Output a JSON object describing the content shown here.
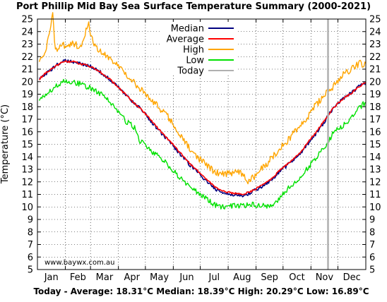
{
  "chart_data": {
    "type": "line",
    "title": "Port Phillip Mid Bay Sea Surface Temperature Summary (2000-2021)",
    "ylabel": "Temperature (°C)",
    "xlabel": "",
    "ylim": [
      5,
      25
    ],
    "xlim": [
      1,
      366
    ],
    "y_ticks": [
      "5",
      "6",
      "7",
      "8",
      "9",
      "10",
      "11",
      "12",
      "13",
      "14",
      "15",
      "16",
      "17",
      "18",
      "19",
      "20",
      "21",
      "22",
      "23",
      "24",
      "25"
    ],
    "x_tick_labels": [
      "Jan",
      "Feb",
      "Mar",
      "Apr",
      "May",
      "Jun",
      "Jul",
      "Aug",
      "Sep",
      "Oct",
      "Nov",
      "Dec"
    ],
    "grid": true,
    "legend_position": "top-center",
    "watermark": "www.baywx.com.au",
    "footer": "Today - Average: 18.31°C Median: 18.39°C High: 20.29°C Low: 16.89°C",
    "today_day": 324,
    "series": [
      {
        "name": "Median",
        "color": "#000080",
        "x": [
          3,
          10,
          20,
          30,
          40,
          50,
          60,
          70,
          80,
          90,
          100,
          110,
          120,
          130,
          140,
          150,
          160,
          170,
          180,
          190,
          200,
          210,
          220,
          230,
          240,
          250,
          260,
          270,
          280,
          290,
          300,
          310,
          320,
          330,
          340,
          350,
          360,
          366
        ],
        "values": [
          20.2,
          20.6,
          21.2,
          21.7,
          21.6,
          21.4,
          21.2,
          20.8,
          20.3,
          19.6,
          18.9,
          18.2,
          17.5,
          16.6,
          15.8,
          15.0,
          14.2,
          13.4,
          12.7,
          12.0,
          11.4,
          11.1,
          11.0,
          10.9,
          11.2,
          11.6,
          12.1,
          12.8,
          13.4,
          14.0,
          14.9,
          15.8,
          16.8,
          17.9,
          18.6,
          19.1,
          19.7,
          19.9
        ]
      },
      {
        "name": "Average",
        "color": "#ff0000",
        "x": [
          3,
          10,
          20,
          30,
          40,
          50,
          60,
          70,
          80,
          90,
          100,
          110,
          120,
          130,
          140,
          150,
          160,
          170,
          180,
          190,
          200,
          210,
          220,
          230,
          240,
          250,
          260,
          270,
          280,
          290,
          300,
          310,
          320,
          330,
          340,
          350,
          360,
          366
        ],
        "values": [
          20.2,
          20.7,
          21.2,
          21.6,
          21.6,
          21.4,
          21.2,
          20.8,
          20.3,
          19.6,
          18.9,
          18.2,
          17.5,
          16.7,
          15.9,
          15.1,
          14.3,
          13.5,
          12.8,
          12.1,
          11.5,
          11.2,
          11.1,
          11.0,
          11.3,
          11.7,
          12.2,
          12.9,
          13.5,
          14.1,
          15.0,
          15.9,
          16.9,
          17.9,
          18.6,
          19.1,
          19.7,
          19.9
        ]
      },
      {
        "name": "High",
        "color": "#ffa500",
        "x": [
          3,
          10,
          15,
          18,
          20,
          22,
          25,
          30,
          40,
          50,
          55,
          58,
          60,
          65,
          70,
          80,
          90,
          100,
          110,
          120,
          130,
          140,
          150,
          160,
          170,
          180,
          190,
          200,
          210,
          220,
          230,
          235,
          240,
          250,
          260,
          270,
          280,
          290,
          300,
          310,
          320,
          330,
          340,
          350,
          360,
          366
        ],
        "values": [
          21.7,
          22.4,
          24.0,
          25.5,
          23.0,
          22.6,
          22.8,
          22.9,
          23.1,
          22.7,
          24.0,
          24.8,
          23.5,
          23.0,
          22.5,
          22.0,
          21.3,
          20.6,
          19.8,
          19.1,
          18.4,
          17.6,
          16.9,
          15.6,
          14.7,
          13.9,
          13.3,
          12.7,
          12.6,
          12.8,
          12.6,
          12.0,
          12.3,
          13.0,
          13.8,
          14.6,
          15.4,
          16.3,
          17.1,
          18.1,
          18.9,
          19.6,
          20.6,
          21.0,
          21.5,
          21.3
        ]
      },
      {
        "name": "Low",
        "color": "#00e000",
        "x": [
          3,
          10,
          20,
          30,
          40,
          50,
          60,
          70,
          80,
          90,
          100,
          110,
          115,
          120,
          130,
          140,
          150,
          160,
          170,
          180,
          190,
          200,
          210,
          220,
          230,
          240,
          250,
          260,
          270,
          280,
          290,
          300,
          310,
          320,
          330,
          340,
          350,
          360,
          366
        ],
        "values": [
          18.7,
          18.9,
          19.5,
          20.1,
          20.0,
          19.8,
          19.5,
          19.1,
          18.5,
          17.6,
          16.8,
          16.3,
          15.2,
          15.1,
          14.3,
          13.8,
          13.0,
          12.3,
          11.6,
          11.1,
          10.6,
          10.1,
          10.0,
          10.1,
          10.1,
          10.2,
          10.1,
          10.0,
          10.7,
          11.5,
          12.1,
          13.0,
          13.8,
          14.8,
          15.9,
          16.5,
          17.1,
          18.0,
          18.4
        ]
      },
      {
        "name": "Today",
        "color": "#b0b0b0"
      }
    ]
  }
}
